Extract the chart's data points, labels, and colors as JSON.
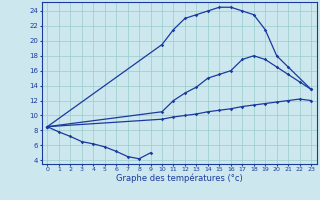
{
  "xlabel": "Graphe des températures (°c)",
  "background_color": "#cce8ee",
  "grid_color": "#99cccc",
  "line_color": "#1a3a9e",
  "yticks": [
    4,
    6,
    8,
    10,
    12,
    14,
    16,
    18,
    20,
    22,
    24
  ],
  "xticks": [
    0,
    1,
    2,
    3,
    4,
    5,
    6,
    7,
    8,
    9,
    10,
    11,
    12,
    13,
    14,
    15,
    16,
    17,
    18,
    19,
    20,
    21,
    22,
    23
  ],
  "line_min_x": [
    0,
    1,
    2,
    3,
    4,
    5,
    6,
    7,
    8,
    9
  ],
  "line_min_y": [
    8.5,
    7.8,
    7.2,
    6.5,
    6.2,
    5.8,
    5.2,
    4.5,
    4.2,
    5.0
  ],
  "line_meanmin_x": [
    0,
    10,
    11,
    12,
    13,
    14,
    15,
    16,
    17,
    18,
    19,
    20,
    21,
    22,
    23
  ],
  "line_meanmin_y": [
    8.5,
    9.5,
    9.8,
    10.0,
    10.2,
    10.5,
    10.7,
    10.9,
    11.2,
    11.4,
    11.6,
    11.8,
    12.0,
    12.2,
    12.0
  ],
  "line_meanmax_x": [
    0,
    10,
    11,
    12,
    13,
    14,
    15,
    16,
    17,
    18,
    19,
    20,
    21,
    22,
    23
  ],
  "line_meanmax_y": [
    8.5,
    10.5,
    12.0,
    13.0,
    13.8,
    15.0,
    15.5,
    16.0,
    17.5,
    18.0,
    17.5,
    16.5,
    15.5,
    14.5,
    13.5
  ],
  "line_max_x": [
    0,
    10,
    11,
    12,
    13,
    14,
    15,
    16,
    17,
    18,
    19,
    20,
    21,
    23
  ],
  "line_max_y": [
    8.5,
    19.5,
    21.5,
    23.0,
    23.5,
    24.0,
    24.5,
    24.5,
    24.0,
    23.5,
    21.5,
    18.0,
    16.5,
    13.5
  ]
}
